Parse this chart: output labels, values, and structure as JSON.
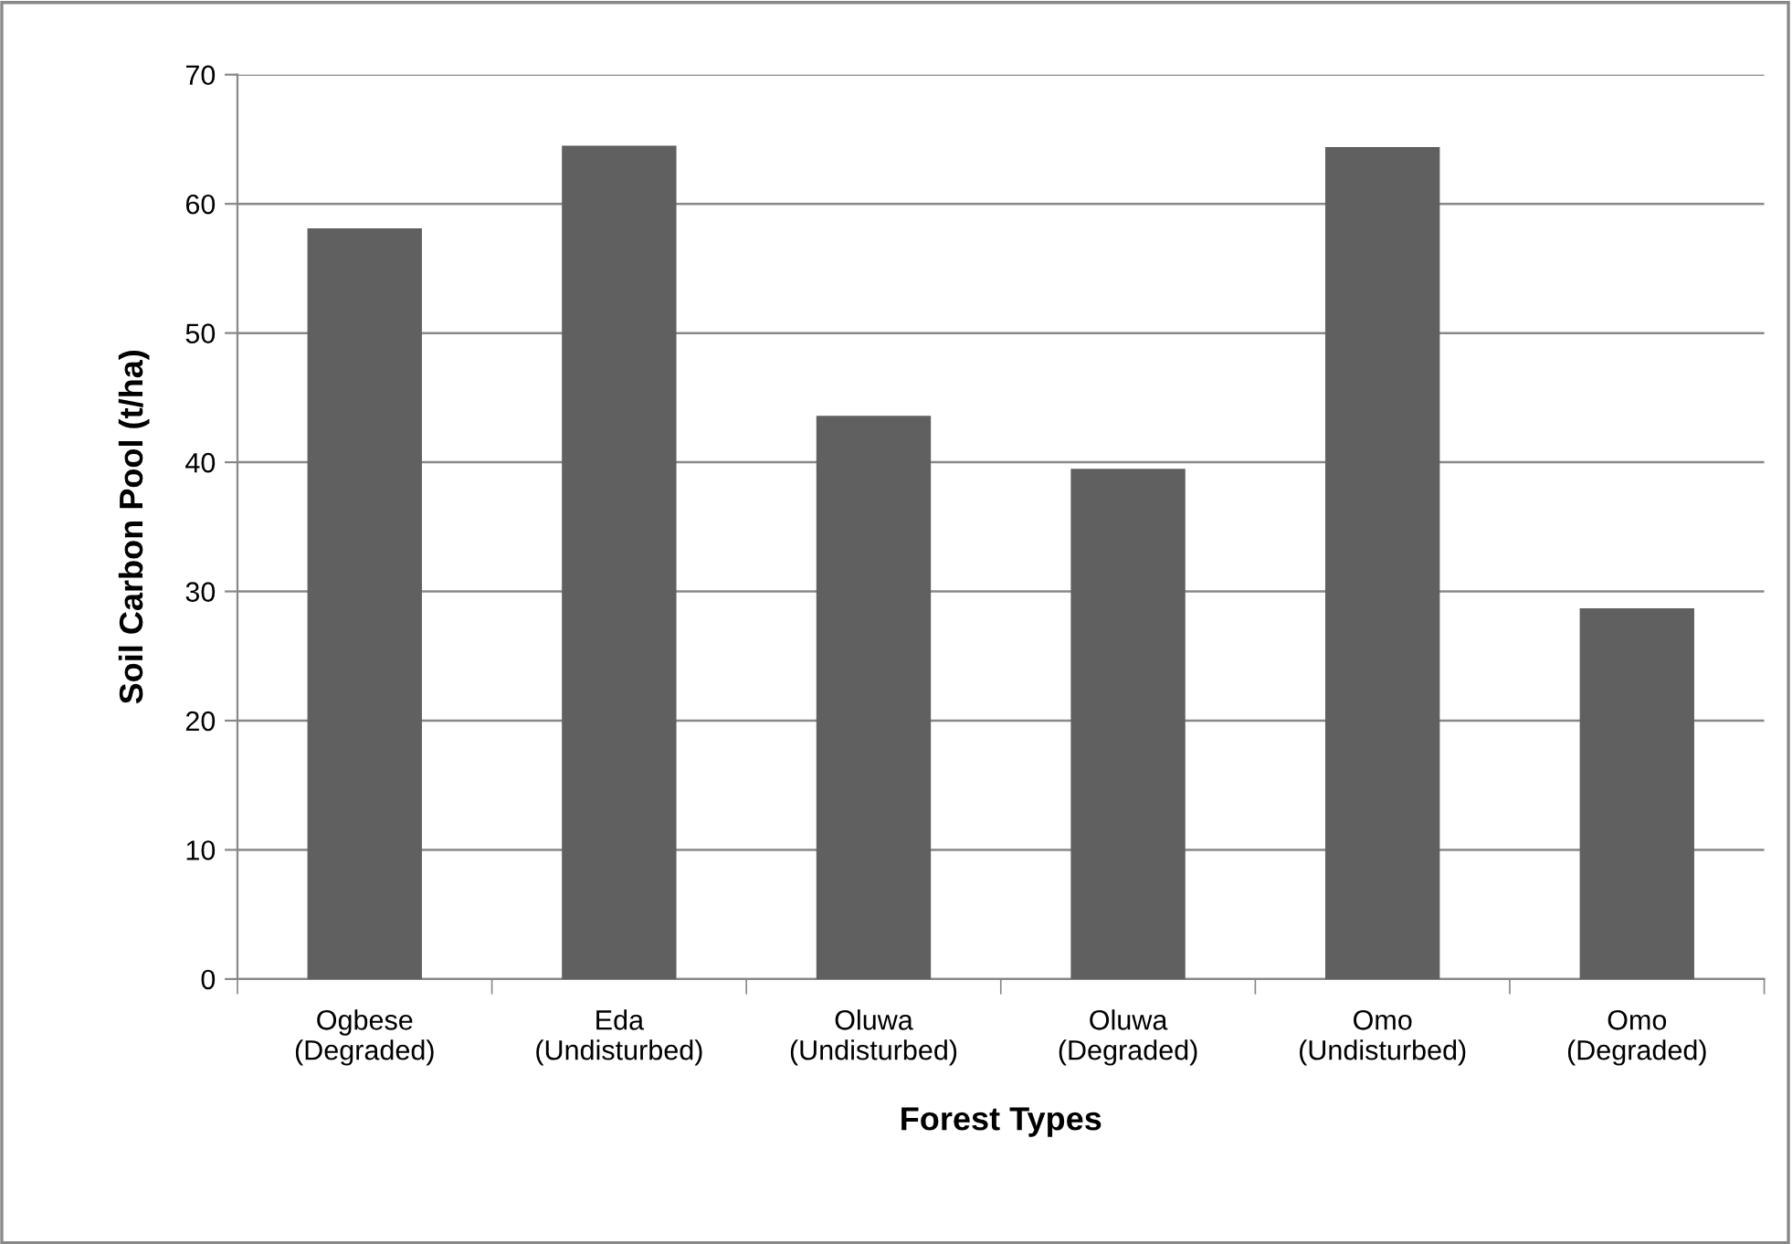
{
  "chart_data": {
    "type": "bar",
    "xlabel": "Forest Types",
    "ylabel": "Soil Carbon Pool (t/ha)",
    "categories": [
      "Ogbese\n(Degraded)",
      "Eda\n(Undisturbed)",
      "Oluwa\n(Undisturbed)",
      "Oluwa\n(Degraded)",
      "Omo\n(Undisturbed)",
      "Omo\n(Degraded)"
    ],
    "values": [
      58.1,
      64.5,
      43.6,
      39.5,
      64.4,
      28.7
    ],
    "color": "#606060",
    "ylim": [
      0,
      70
    ],
    "yticks": [
      0,
      10,
      20,
      30,
      40,
      50,
      60,
      70
    ],
    "grid": "y"
  }
}
